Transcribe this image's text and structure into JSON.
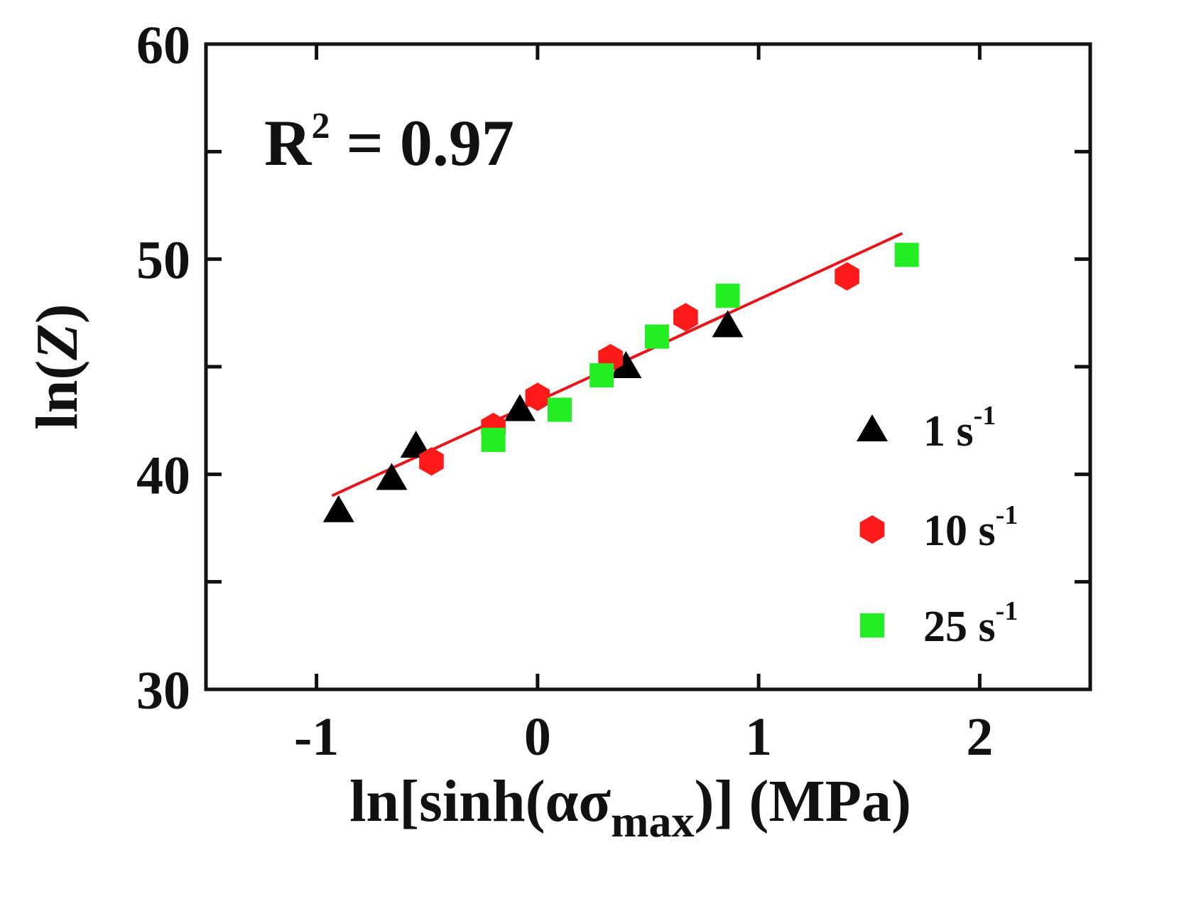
{
  "chart_data": {
    "type": "scatter",
    "title": "",
    "xlabel": {
      "prefix": "ln[sinh(ασ",
      "subscript": "max",
      "suffix": ")] (MPa)"
    },
    "ylabel": {
      "prefix": "ln(",
      "italic": "Z",
      "suffix": ")"
    },
    "xlim": [
      -1.5,
      2.5
    ],
    "ylim": [
      30,
      60
    ],
    "xticks": [
      -1,
      0,
      1,
      2
    ],
    "xtick_labels": [
      "-1",
      "0",
      "1",
      "2"
    ],
    "yticks": [
      30,
      40,
      50,
      60
    ],
    "ytick_labels": [
      "30",
      "40",
      "50",
      "60"
    ],
    "y_minor_ticks": [
      35,
      45,
      55
    ],
    "grid": false,
    "legend_position": "right",
    "annotation": {
      "base": "R",
      "sup": "2",
      "rest": " = 0.97"
    },
    "series": [
      {
        "name": "1 s⁻¹",
        "label_main": "1 s",
        "label_sup": "-1",
        "marker": "triangle",
        "color": "#000000",
        "x": [
          -0.9,
          -0.66,
          -0.55,
          -0.08,
          0.4,
          0.86
        ],
        "y": [
          38.3,
          39.8,
          41.3,
          43.0,
          45.0,
          46.9
        ]
      },
      {
        "name": "10 s⁻¹",
        "label_main": "10 s",
        "label_sup": "-1",
        "marker": "hexagon",
        "color": "#ff1a1a",
        "x": [
          -0.48,
          -0.2,
          0.0,
          0.33,
          0.67,
          1.4
        ],
        "y": [
          40.6,
          42.2,
          43.6,
          45.4,
          47.3,
          49.2
        ]
      },
      {
        "name": "25 s⁻¹",
        "label_main": "25 s",
        "label_sup": "-1",
        "marker": "square",
        "color": "#22ee22",
        "x": [
          -0.2,
          0.1,
          0.29,
          0.54,
          0.86,
          1.67
        ],
        "y": [
          41.6,
          43.0,
          44.6,
          46.4,
          48.3,
          50.2
        ]
      }
    ],
    "fit_line": {
      "name": "linear fit",
      "color": "#e8141c",
      "x": [
        -0.93,
        1.65
      ],
      "y": [
        39.0,
        51.2
      ]
    }
  }
}
